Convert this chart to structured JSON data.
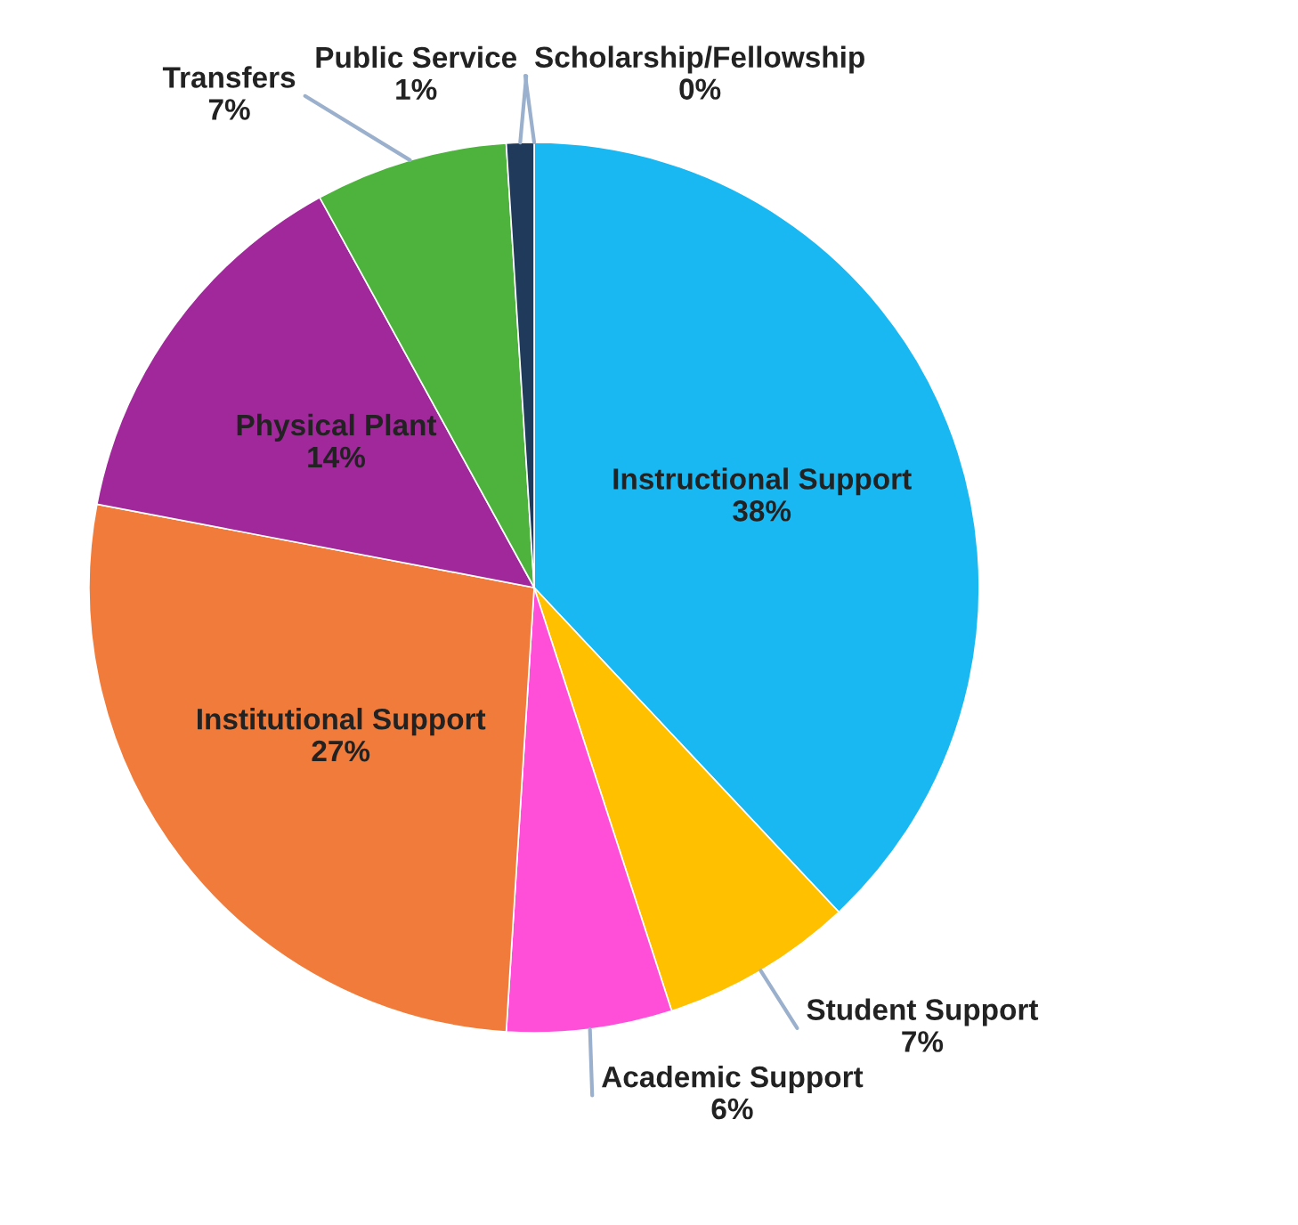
{
  "chart_data": {
    "type": "pie",
    "categories": [
      "Scholarship/Fellowship",
      "Instructional Support",
      "Student Support",
      "Academic Support",
      "Institutional Support",
      "Physical Plant",
      "Transfers",
      "Public Service"
    ],
    "values": [
      0,
      38,
      7,
      6,
      27,
      14,
      7,
      1
    ],
    "value_labels": [
      "0%",
      "38%",
      "7%",
      "6%",
      "27%",
      "14%",
      "7%",
      "1%"
    ],
    "colors": [
      "#8fa8c8",
      "#1ab8f2",
      "#ffc000",
      "#ff4fd8",
      "#f07b3a",
      "#a0289b",
      "#4db33d",
      "#1f3a5a"
    ]
  }
}
